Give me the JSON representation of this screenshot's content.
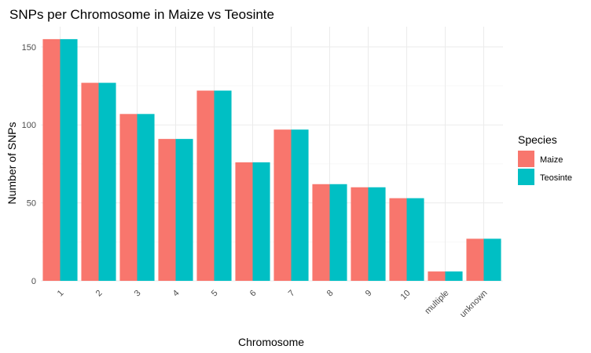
{
  "chart_data": {
    "type": "bar",
    "title": "SNPs per Chromosome in Maize vs Teosinte",
    "xlabel": "Chromosome",
    "ylabel": "Number of SNPs",
    "categories": [
      "1",
      "2",
      "3",
      "4",
      "5",
      "6",
      "7",
      "8",
      "9",
      "10",
      "multiple",
      "unknown"
    ],
    "series": [
      {
        "name": "Maize",
        "color": "#F8766D",
        "values": [
          155,
          127,
          107,
          91,
          122,
          76,
          97,
          62,
          60,
          53,
          6,
          27
        ]
      },
      {
        "name": "Teosinte",
        "color": "#00BFC4",
        "values": [
          155,
          127,
          107,
          91,
          122,
          76,
          97,
          62,
          60,
          53,
          6,
          27
        ]
      }
    ],
    "ylim": [
      0,
      163
    ],
    "yticks": [
      0,
      50,
      100,
      150
    ],
    "grid": true,
    "legend": {
      "title": "Species",
      "position": "right"
    }
  }
}
